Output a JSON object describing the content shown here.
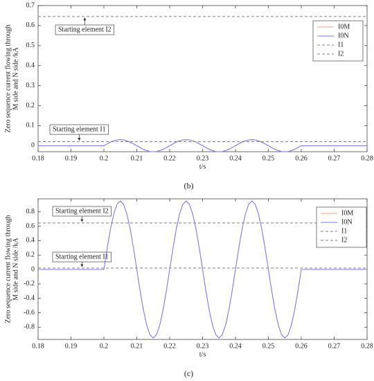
{
  "chart_data": [
    {
      "type": "line",
      "label": "(b)",
      "xlabel": "t/s",
      "ylabel": [
        "Zero sequence current flowing through",
        "M side and N side /kA"
      ],
      "xlim": [
        0.18,
        0.28
      ],
      "xticks": [
        0.18,
        0.19,
        0.2,
        0.21,
        0.22,
        0.23,
        0.24,
        0.25,
        0.26,
        0.27,
        0.28
      ],
      "ylim": [
        -0.03,
        0.7
      ],
      "yticks": [
        0,
        0.1,
        0.2,
        0.3,
        0.4,
        0.5,
        0.6,
        0.7
      ],
      "legend": "upper right",
      "annotations": [
        {
          "text": "Starting element I2"
        },
        {
          "text": "Starting element I1"
        }
      ],
      "x": [
        0.18,
        0.2,
        0.201,
        0.202,
        0.203,
        0.204,
        0.205,
        0.206,
        0.207,
        0.208,
        0.209,
        0.21,
        0.211,
        0.212,
        0.213,
        0.214,
        0.215,
        0.216,
        0.217,
        0.218,
        0.219,
        0.22,
        0.221,
        0.222,
        0.223,
        0.224,
        0.225,
        0.226,
        0.227,
        0.228,
        0.229,
        0.23,
        0.231,
        0.232,
        0.233,
        0.234,
        0.235,
        0.236,
        0.237,
        0.238,
        0.239,
        0.24,
        0.241,
        0.242,
        0.243,
        0.244,
        0.245,
        0.246,
        0.247,
        0.248,
        0.249,
        0.25,
        0.251,
        0.252,
        0.253,
        0.254,
        0.255,
        0.256,
        0.257,
        0.258,
        0.259,
        0.26,
        0.28
      ],
      "series": [
        {
          "name": "I0M",
          "color": "#f0a070",
          "dash": false,
          "values": [
            0,
            0,
            0.009,
            0.018,
            0.024,
            0.029,
            0.03,
            0.029,
            0.024,
            0.018,
            0.009,
            0,
            -0.009,
            -0.018,
            -0.024,
            -0.029,
            -0.03,
            -0.029,
            -0.024,
            -0.018,
            -0.009,
            0,
            0.009,
            0.018,
            0.024,
            0.029,
            0.03,
            0.029,
            0.024,
            0.018,
            0.009,
            0,
            -0.009,
            -0.018,
            -0.024,
            -0.029,
            -0.03,
            -0.029,
            -0.024,
            -0.018,
            -0.009,
            0,
            0.009,
            0.018,
            0.024,
            0.029,
            0.03,
            0.029,
            0.024,
            0.018,
            0.009,
            0,
            -0.009,
            -0.018,
            -0.024,
            -0.029,
            -0.03,
            -0.029,
            -0.024,
            -0.018,
            -0.009,
            0,
            0
          ]
        },
        {
          "name": "I0N",
          "color": "#7878ff",
          "dash": false,
          "values": [
            0,
            0,
            0.009,
            0.018,
            0.024,
            0.029,
            0.03,
            0.029,
            0.024,
            0.018,
            0.009,
            0,
            -0.009,
            -0.018,
            -0.024,
            -0.029,
            -0.03,
            -0.029,
            -0.024,
            -0.018,
            -0.009,
            0,
            0.009,
            0.018,
            0.024,
            0.029,
            0.03,
            0.029,
            0.024,
            0.018,
            0.009,
            0,
            -0.009,
            -0.018,
            -0.024,
            -0.029,
            -0.03,
            -0.029,
            -0.024,
            -0.018,
            -0.009,
            0,
            0.009,
            0.018,
            0.024,
            0.029,
            0.03,
            0.029,
            0.024,
            0.018,
            0.009,
            0,
            -0.009,
            -0.018,
            -0.024,
            -0.029,
            -0.03,
            -0.029,
            -0.024,
            -0.018,
            -0.009,
            0,
            0
          ]
        },
        {
          "name": "I1",
          "color": "#808080",
          "dash": true,
          "x": [
            0.18,
            0.28
          ],
          "values": [
            0.02,
            0.02
          ]
        },
        {
          "name": "I2",
          "color": "#808080",
          "dash": true,
          "x": [
            0.18,
            0.28
          ],
          "values": [
            0.645,
            0.645
          ]
        }
      ]
    },
    {
      "type": "line",
      "label": "(c)",
      "xlabel": "t/s",
      "ylabel": [
        "Zero sequence current flowing through",
        "M side and N side /kA"
      ],
      "xlim": [
        0.18,
        0.28
      ],
      "xticks": [
        0.18,
        0.19,
        0.2,
        0.21,
        0.22,
        0.23,
        0.24,
        0.25,
        0.26,
        0.27,
        0.28
      ],
      "ylim": [
        -0.97,
        0.98
      ],
      "yticks": [
        -0.8,
        -0.6,
        -0.4,
        -0.2,
        0,
        0.2,
        0.4,
        0.6,
        0.8
      ],
      "legend": "upper right",
      "annotations": [
        {
          "text": "Starting element I2"
        },
        {
          "text": "Starting element I1"
        }
      ],
      "x": [
        0.18,
        0.2,
        0.201,
        0.202,
        0.203,
        0.204,
        0.205,
        0.206,
        0.207,
        0.208,
        0.209,
        0.21,
        0.211,
        0.212,
        0.213,
        0.214,
        0.215,
        0.216,
        0.217,
        0.218,
        0.219,
        0.22,
        0.221,
        0.222,
        0.223,
        0.224,
        0.225,
        0.226,
        0.227,
        0.228,
        0.229,
        0.23,
        0.231,
        0.232,
        0.233,
        0.234,
        0.235,
        0.236,
        0.237,
        0.238,
        0.239,
        0.24,
        0.241,
        0.242,
        0.243,
        0.244,
        0.245,
        0.246,
        0.247,
        0.248,
        0.249,
        0.25,
        0.251,
        0.252,
        0.253,
        0.254,
        0.255,
        0.256,
        0.257,
        0.258,
        0.259,
        0.26,
        0.28
      ],
      "series": [
        {
          "name": "I0M",
          "color": "#f0a070",
          "dash": false,
          "values": [
            0,
            0,
            0.294,
            0.559,
            0.769,
            0.904,
            0.95,
            0.904,
            0.769,
            0.559,
            0.294,
            0,
            -0.294,
            -0.559,
            -0.769,
            -0.904,
            -0.95,
            -0.904,
            -0.769,
            -0.559,
            -0.294,
            0,
            0.294,
            0.559,
            0.769,
            0.904,
            0.95,
            0.904,
            0.769,
            0.559,
            0.294,
            0,
            -0.294,
            -0.559,
            -0.769,
            -0.904,
            -0.95,
            -0.904,
            -0.769,
            -0.559,
            -0.294,
            0,
            0.294,
            0.559,
            0.769,
            0.904,
            0.95,
            0.904,
            0.769,
            0.559,
            0.294,
            0,
            -0.294,
            -0.559,
            -0.769,
            -0.904,
            -0.95,
            -0.904,
            -0.769,
            -0.559,
            -0.294,
            0,
            0
          ]
        },
        {
          "name": "I0N",
          "color": "#7878ff",
          "dash": false,
          "values": [
            0,
            0,
            0.294,
            0.559,
            0.769,
            0.904,
            0.95,
            0.904,
            0.769,
            0.559,
            0.294,
            0,
            -0.294,
            -0.559,
            -0.769,
            -0.904,
            -0.95,
            -0.904,
            -0.769,
            -0.559,
            -0.294,
            0,
            0.294,
            0.559,
            0.769,
            0.904,
            0.95,
            0.904,
            0.769,
            0.559,
            0.294,
            0,
            -0.294,
            -0.559,
            -0.769,
            -0.904,
            -0.95,
            -0.904,
            -0.769,
            -0.559,
            -0.294,
            0,
            0.294,
            0.559,
            0.769,
            0.904,
            0.95,
            0.904,
            0.769,
            0.559,
            0.294,
            0,
            -0.294,
            -0.559,
            -0.769,
            -0.904,
            -0.95,
            -0.904,
            -0.769,
            -0.559,
            -0.294,
            0,
            0
          ]
        },
        {
          "name": "I1",
          "color": "#808080",
          "dash": true,
          "x": [
            0.18,
            0.28
          ],
          "values": [
            0.02,
            0.02
          ]
        },
        {
          "name": "I2",
          "color": "#808080",
          "dash": true,
          "x": [
            0.18,
            0.28
          ],
          "values": [
            0.645,
            0.645
          ]
        }
      ]
    }
  ]
}
